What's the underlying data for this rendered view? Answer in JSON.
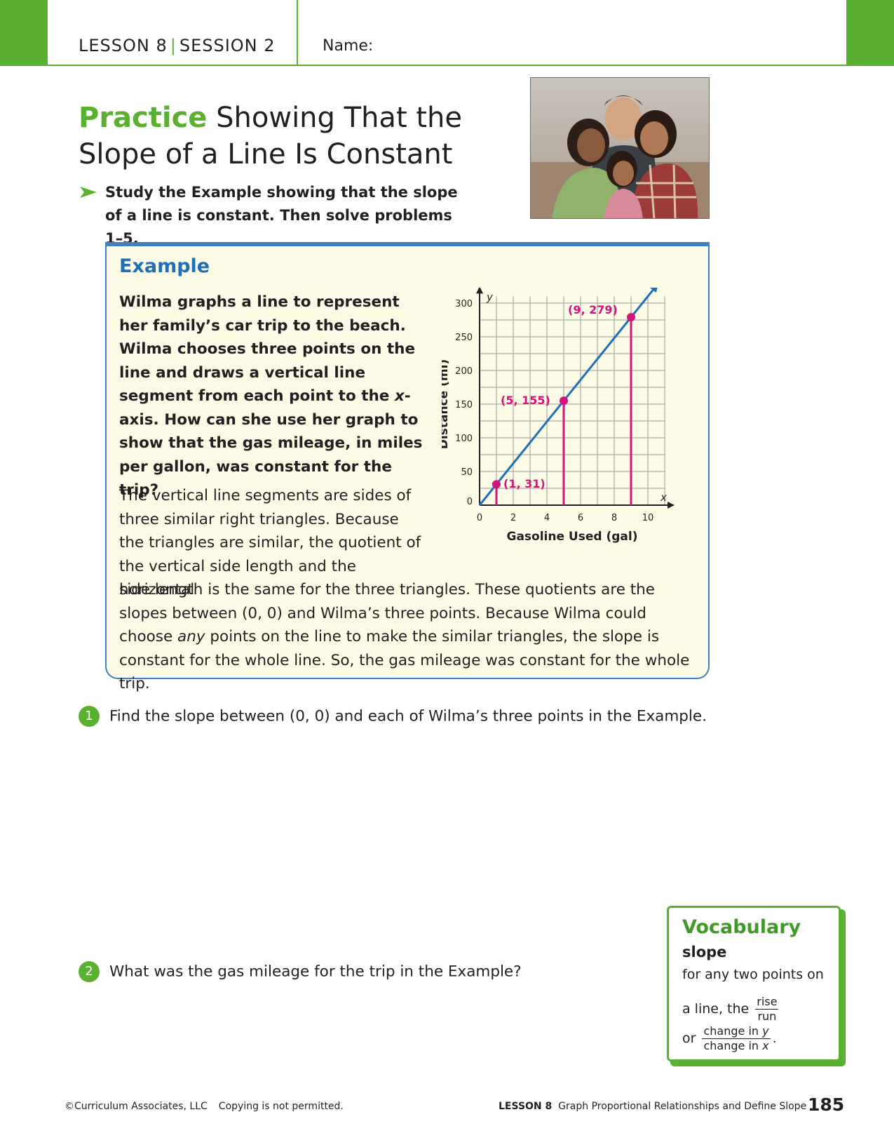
{
  "header": {
    "lesson": "LESSON 8",
    "session": "SESSION 2",
    "name_label": "Name:"
  },
  "title": {
    "practice": "Practice",
    "rest_line1": "Showing That the",
    "rest_line2": "Slope of a Line Is Constant"
  },
  "instruction": "Study the Example showing that the slope of a line is constant. Then solve problems 1–5.",
  "example": {
    "heading": "Example",
    "question_before_x": "Wilma graphs a line to represent her family’s car trip to the beach. Wilma chooses three points on the line and draws a vertical line segment from each point to the ",
    "question_x": "x",
    "question_after_x": "-axis. How can she use her graph to show that the gas mileage, in miles per gallon, was constant for the trip?",
    "answer_para1": "The vertical line segments are sides of three similar right triangles. Because the triangles are similar, the quotient of the vertical side length and the horizontal",
    "answer_para2_before_any": "side length is the same for the three triangles. These quotients are the slopes between (0, 0) and Wilma’s three points. Because Wilma could choose ",
    "answer_para2_any": "any",
    "answer_para2_after_any": " points on the line to make the similar triangles, the slope is constant for the whole line. So, the gas mileage was constant for the whole trip."
  },
  "chart_data": {
    "type": "line",
    "xlabel": "Gasoline Used (gal)",
    "ylabel": "Distance (mi)",
    "x_axis_letter": "x",
    "y_axis_letter": "y",
    "xlim": [
      0,
      11
    ],
    "ylim": [
      0,
      310
    ],
    "x_ticks": [
      0,
      2,
      4,
      6,
      8,
      10
    ],
    "y_ticks": [
      0,
      50,
      100,
      150,
      200,
      250,
      300
    ],
    "grid": true,
    "line": {
      "slope": 31,
      "intercept": 0,
      "color": "#1f6fb7"
    },
    "points": [
      {
        "x": 1,
        "y": 31,
        "label": "(1, 31)"
      },
      {
        "x": 5,
        "y": 155,
        "label": "(5, 155)"
      },
      {
        "x": 9,
        "y": 279,
        "label": "(9, 279)"
      }
    ],
    "point_color": "#d4147a"
  },
  "problems": [
    {
      "number": "1",
      "text": "Find the slope between (0, 0) and each of Wilma’s three points in the Example."
    },
    {
      "number": "2",
      "text": "What was the gas mileage for the trip in the Example?"
    }
  ],
  "vocabulary": {
    "heading": "Vocabulary",
    "term": "slope",
    "def_line1": "for any two points on",
    "def_line2": "a line, the",
    "frac1_num": "rise",
    "frac1_den": "run",
    "def_or": "or",
    "frac2_num_prefix": "change in ",
    "frac2_num_var": "y",
    "frac2_den_prefix": "change in ",
    "frac2_den_var": "x",
    "def_end": "."
  },
  "footer": {
    "copyright": "©Curriculum Associates, LLC",
    "copying": "Copying is not permitted.",
    "lesson": "LESSON 8",
    "lesson_title": "Graph Proportional Relationships and Define Slope",
    "page_number": "185"
  },
  "colors": {
    "green": "#5ab031",
    "blue": "#1f6fb7",
    "magenta": "#d4147a",
    "example_bg": "#fcfbe6"
  }
}
